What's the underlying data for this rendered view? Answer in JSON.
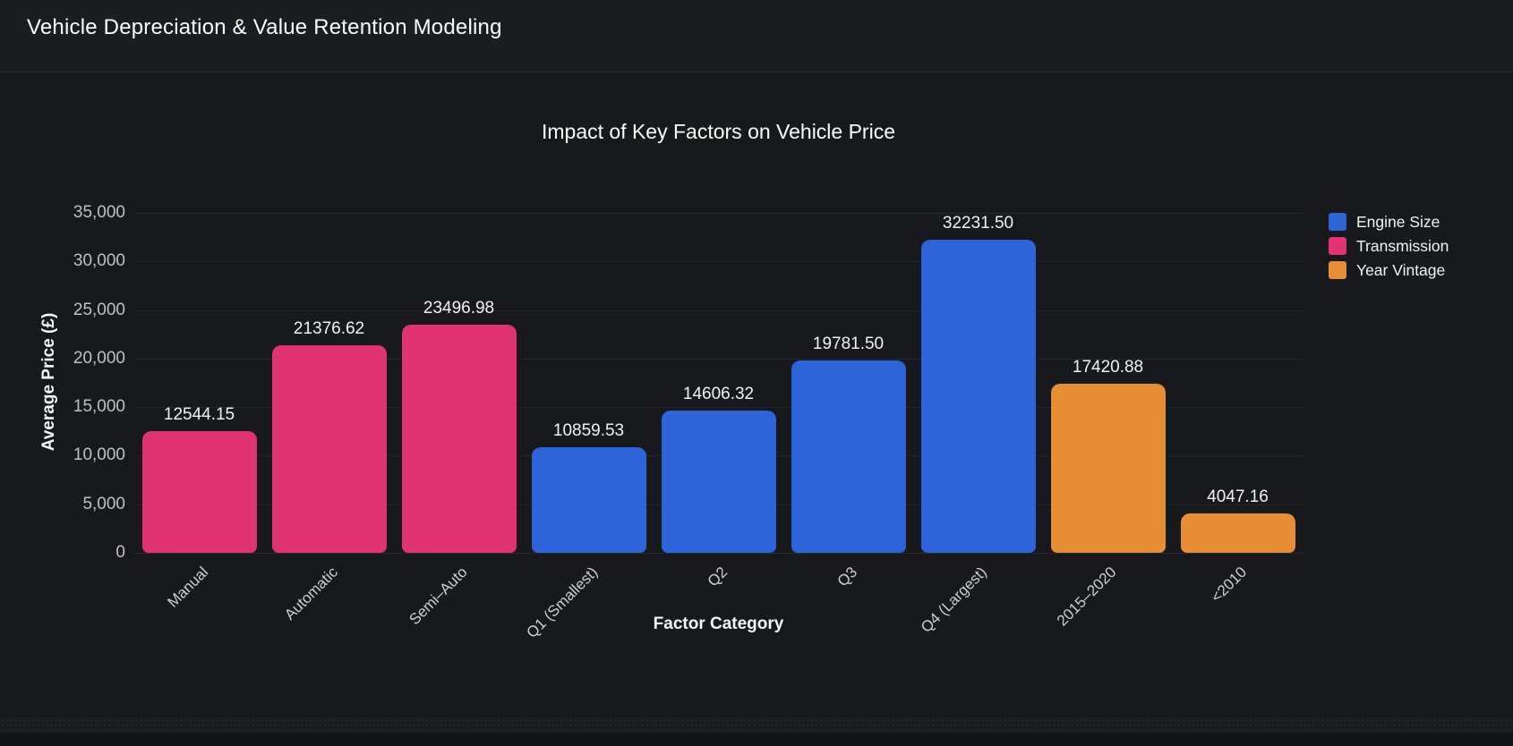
{
  "header": {
    "title": "Vehicle Depreciation & Value Retention Modeling"
  },
  "chart_data": {
    "type": "bar",
    "title": "Impact of Key Factors on Vehicle Price",
    "xlabel": "Factor Category",
    "ylabel": "Average Price (£)",
    "ylim": [
      0,
      35000
    ],
    "grid": true,
    "legend_position": "top-right",
    "background": "#18191c",
    "categories": [
      "Manual",
      "Automatic",
      "Semi–Auto",
      "Q1 (Smallest)",
      "Q2",
      "Q3",
      "Q4 (Largest)",
      "2015–2020",
      "<2010"
    ],
    "values": [
      12544.15,
      21376.62,
      23496.98,
      10859.53,
      14606.32,
      19781.5,
      32231.5,
      17420.88,
      4047.16
    ],
    "value_labels": [
      "12544.15",
      "21376.62",
      "23496.98",
      "10859.53",
      "14606.32",
      "19781.50",
      "32231.50",
      "17420.88",
      "4047.16"
    ],
    "bar_series": [
      "Transmission",
      "Transmission",
      "Transmission",
      "Engine Size",
      "Engine Size",
      "Engine Size",
      "Engine Size",
      "Year Vintage",
      "Year Vintage"
    ],
    "series": [
      {
        "name": "Engine Size",
        "color": "#2d64da",
        "categories": [
          "Q1 (Smallest)",
          "Q2",
          "Q3",
          "Q4 (Largest)"
        ],
        "values": [
          10859.53,
          14606.32,
          19781.5,
          32231.5
        ]
      },
      {
        "name": "Transmission",
        "color": "#e23371",
        "categories": [
          "Manual",
          "Automatic",
          "Semi–Auto"
        ],
        "values": [
          12544.15,
          21376.62,
          23496.98
        ]
      },
      {
        "name": "Year Vintage",
        "color": "#e78e35",
        "categories": [
          "2015–2020",
          "<2010"
        ],
        "values": [
          17420.88,
          4047.16
        ]
      }
    ],
    "yticks": [
      {
        "v": 0,
        "label": "0"
      },
      {
        "v": 5000,
        "label": "5,000"
      },
      {
        "v": 10000,
        "label": "10,000"
      },
      {
        "v": 15000,
        "label": "15,000"
      },
      {
        "v": 20000,
        "label": "20,000"
      },
      {
        "v": 25000,
        "label": "25,000"
      },
      {
        "v": 30000,
        "label": "30,000"
      },
      {
        "v": 35000,
        "label": "35,000"
      }
    ]
  }
}
